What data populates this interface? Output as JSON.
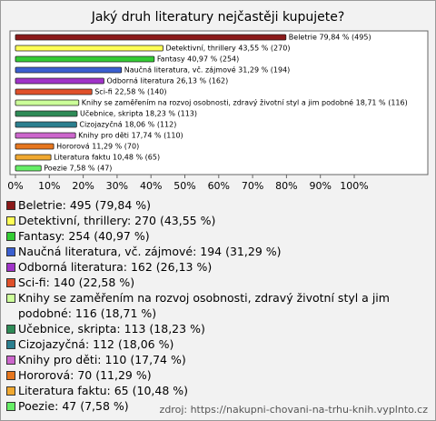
{
  "chart_data": {
    "type": "bar",
    "orientation": "horizontal",
    "title": "Jaký druh literatury nejčastěji kupujete?",
    "values": [
      79.84,
      43.55,
      40.97,
      31.29,
      26.13,
      22.58,
      18.71,
      18.23,
      18.06,
      17.74,
      11.29,
      10.48,
      7.58
    ],
    "value_labels": [
      "Beletrie 79,84 % (495)",
      "Detektivní, thrillery 43,55 % (270)",
      "Fantasy 40,97 % (254)",
      "Naučná literatura, vč. zájmové 31,29 % (194)",
      "Odborná literatura 26,13 % (162)",
      "Sci-fi 22,58 % (140)",
      "Knihy se zaměřením na rozvoj osobnosti, zdravý životní styl a jim podobné 18,71 % (116)",
      "Učebnice, skripta 18,23 % (113)",
      "Cizojazyčná 18,06 % (112)",
      "Knihy pro děti 17,74 % (110)",
      "Hororová 11,29 % (70)",
      "Literatura faktu 10,48 % (65)",
      "Poezie 7,58 % (47)"
    ],
    "colors": [
      "#8b1a1a",
      "#ffff55",
      "#33cc33",
      "#3a5fd0",
      "#a033c8",
      "#e0502a",
      "#ccff99",
      "#2e8b57",
      "#2b7f8f",
      "#cc66cc",
      "#e6761e",
      "#f0a830",
      "#66ee66"
    ],
    "legend": [
      "Beletrie: 495 (79,84 %)",
      "Detektivní, thrillery: 270 (43,55 %)",
      "Fantasy: 254 (40,97 %)",
      "Naučná literatura, vč. zájmové: 194 (31,29 %)",
      "Odborná literatura: 162 (26,13 %)",
      "Sci-fi: 140 (22,58 %)",
      "Knihy se zaměřením na rozvoj osobnosti, zdravý životní styl a jim podobné: 116 (18,71 %)",
      "Učebnice, skripta: 113 (18,23 %)",
      "Cizojazyčná: 112 (18,06 %)",
      "Knihy pro děti: 110 (17,74 %)",
      "Hororová: 70 (11,29 %)",
      "Literatura faktu: 65 (10,48 %)",
      "Poezie: 47 (7,58 %)"
    ],
    "xlim": [
      0,
      100
    ],
    "xticks": [
      {
        "value": 0,
        "label": "0%"
      },
      {
        "value": 10,
        "label": "10%"
      },
      {
        "value": 20,
        "label": "20%"
      },
      {
        "value": 30,
        "label": "30%"
      },
      {
        "value": 40,
        "label": "40%"
      },
      {
        "value": 50,
        "label": "50%"
      },
      {
        "value": 60,
        "label": "60%"
      },
      {
        "value": 70,
        "label": "70%"
      },
      {
        "value": 80,
        "label": "80%"
      },
      {
        "value": 90,
        "label": "90%"
      },
      {
        "value": 100,
        "label": "100%"
      }
    ],
    "grid": false,
    "source": "zdroj: https://nakupni-chovani-na-trhu-knih.vyplnto.cz"
  }
}
